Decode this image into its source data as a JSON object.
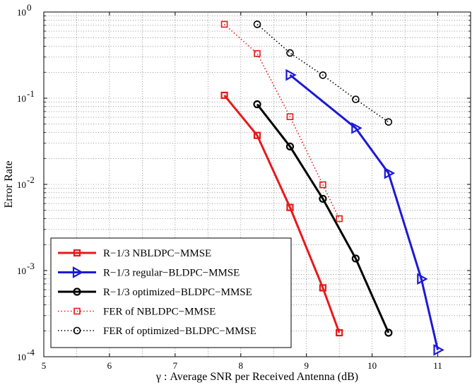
{
  "chart_data": {
    "type": "line",
    "xlabel": "γ : Average SNR per Received Antenna (dB)",
    "ylabel": "Error Rate",
    "xlim": [
      5,
      11.5
    ],
    "ylim": [
      0.0001,
      1
    ],
    "yscale": "log",
    "grid": true,
    "legend_position": "bottom-left",
    "x_ticks": [
      5,
      6,
      7,
      8,
      9,
      10,
      11
    ],
    "y_ticks": [
      {
        "value": 1,
        "mantissa": "10",
        "exp": "0"
      },
      {
        "value": 0.1,
        "mantissa": "10",
        "exp": "-1"
      },
      {
        "value": 0.01,
        "mantissa": "10",
        "exp": "-2"
      },
      {
        "value": 0.001,
        "mantissa": "10",
        "exp": "-3"
      },
      {
        "value": 0.0001,
        "mantissa": "10",
        "exp": "-4"
      }
    ],
    "series": [
      {
        "name": "R−1/3 NBLDPC−MMSE",
        "color": "#e8191b",
        "style": "solid",
        "marker": "square",
        "x": [
          7.75,
          8.25,
          8.75,
          9.25,
          9.5
        ],
        "y": [
          0.108,
          0.037,
          0.0054,
          0.00063,
          0.00019
        ]
      },
      {
        "name": "R−1/3 regular−BLDPC−MMSE",
        "color": "#1c19d6",
        "style": "solid",
        "marker": "triangle-right",
        "x": [
          8.75,
          9.75,
          10.25,
          10.75,
          11.0
        ],
        "y": [
          0.186,
          0.045,
          0.0135,
          0.0008,
          0.00012
        ]
      },
      {
        "name": "R−1/3 optimized−BLDPC−MMSE",
        "color": "#000000",
        "style": "solid",
        "marker": "circle",
        "x": [
          8.25,
          8.75,
          9.25,
          9.75,
          10.25
        ],
        "y": [
          0.085,
          0.0275,
          0.0068,
          0.00138,
          0.00019
        ]
      },
      {
        "name": "FER of NBLDPC−MMSE",
        "color": "#e8191b",
        "style": "dotted",
        "marker": "square",
        "x": [
          7.75,
          8.25,
          8.75,
          9.25,
          9.5
        ],
        "y": [
          0.72,
          0.33,
          0.061,
          0.0099,
          0.004
        ]
      },
      {
        "name": "FER of optimized−BLDPC−MMSE",
        "color": "#000000",
        "style": "dotted",
        "marker": "circle",
        "x": [
          8.25,
          8.75,
          9.25,
          9.75,
          10.25
        ],
        "y": [
          0.72,
          0.335,
          0.185,
          0.097,
          0.053
        ]
      }
    ]
  }
}
